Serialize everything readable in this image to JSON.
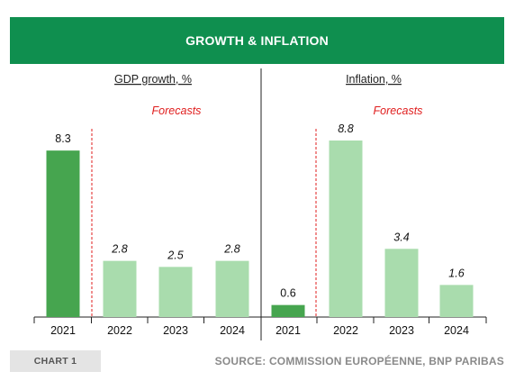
{
  "header": {
    "title": "GROWTH & INFLATION"
  },
  "footer": {
    "chart_tag": "CHART 1",
    "source": "SOURCE: COMMISSION EUROPÉENNE, BNP PARIBAS"
  },
  "colors": {
    "banner": "#0f8f4f",
    "actual": "#46a54f",
    "forecast": "#a9dcad",
    "forecast_line": "#e01e1e"
  },
  "chart_data": [
    {
      "type": "bar",
      "title": "GDP growth, %",
      "annotation": "Forecasts",
      "categories": [
        "2021",
        "2022",
        "2023",
        "2024"
      ],
      "values": [
        8.3,
        2.8,
        2.5,
        2.8
      ],
      "value_labels": [
        "8.3",
        "2.8",
        "2.5",
        "2.8"
      ],
      "forecast_from": "2022",
      "ylim": [
        0,
        10
      ]
    },
    {
      "type": "bar",
      "title": "Inflation, %",
      "annotation": "Forecasts",
      "categories": [
        "2021",
        "2022",
        "2023",
        "2024"
      ],
      "values": [
        0.6,
        8.8,
        3.4,
        1.6
      ],
      "value_labels": [
        "0.6",
        "8.8",
        "3.4",
        "1.6"
      ],
      "forecast_from": "2022",
      "ylim": [
        0,
        10
      ]
    }
  ]
}
